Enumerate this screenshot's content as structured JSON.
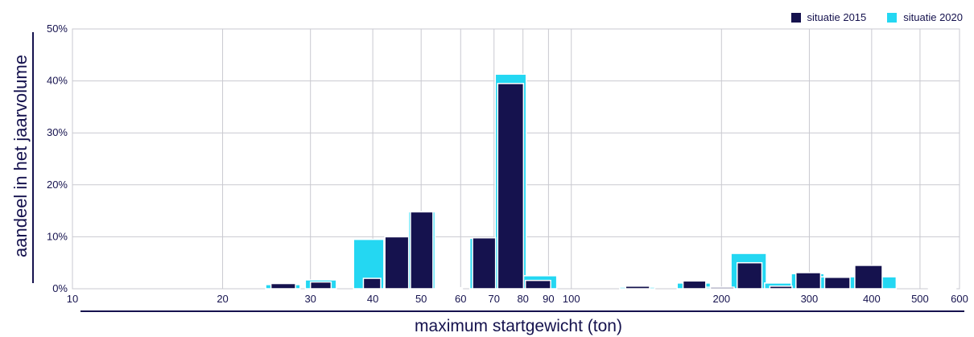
{
  "chart_data": {
    "type": "bar",
    "title": "",
    "xlabel": "maximum startgewicht (ton)",
    "ylabel": "aandeel in het jaarvolume",
    "x_scale": "log",
    "xlim": [
      10,
      600
    ],
    "ylim": [
      0,
      50
    ],
    "grid": true,
    "legend_position": "top-right",
    "x_ticks": [
      10,
      20,
      30,
      40,
      50,
      60,
      70,
      80,
      90,
      100,
      200,
      300,
      400,
      500,
      600
    ],
    "x_tick_labels": [
      "10",
      "20",
      "30",
      "40",
      "50",
      "60",
      "70",
      "80",
      "90",
      "100",
      "200",
      "300",
      "400",
      "500",
      "600"
    ],
    "y_ticks": [
      0,
      10,
      20,
      30,
      40,
      50
    ],
    "y_tick_labels": [
      "0%",
      "10%",
      "20%",
      "30%",
      "40%",
      "50%"
    ],
    "series": [
      {
        "name": "situatie 2015",
        "color": "#15124e",
        "bars": [
          {
            "from": 25,
            "to": 28,
            "value": 1.0
          },
          {
            "from": 30,
            "to": 33,
            "value": 1.3
          },
          {
            "from": 38.3,
            "to": 41.5,
            "value": 2.0
          },
          {
            "from": 42.3,
            "to": 47.2,
            "value": 10.0
          },
          {
            "from": 47.6,
            "to": 52.8,
            "value": 14.8
          },
          {
            "from": 54,
            "to": 60,
            "value": 0.2
          },
          {
            "from": 63.4,
            "to": 70.5,
            "value": 9.8
          },
          {
            "from": 71.2,
            "to": 80.2,
            "value": 39.5
          },
          {
            "from": 80.9,
            "to": 90.9,
            "value": 1.6
          },
          {
            "from": 128.5,
            "to": 143.5,
            "value": 0.5
          },
          {
            "from": 167.5,
            "to": 186,
            "value": 1.5
          },
          {
            "from": 190,
            "to": 212,
            "value": 0.3
          },
          {
            "from": 215,
            "to": 241,
            "value": 5.0
          },
          {
            "from": 250,
            "to": 277,
            "value": 0.5
          },
          {
            "from": 282,
            "to": 316,
            "value": 3.1
          },
          {
            "from": 322,
            "to": 362,
            "value": 2.2
          },
          {
            "from": 370,
            "to": 420,
            "value": 4.5
          }
        ]
      },
      {
        "name": "situatie 2020",
        "color": "#24d7f2",
        "bars": [
          {
            "from": 24.4,
            "to": 28.6,
            "value": 0.8
          },
          {
            "from": 29.3,
            "to": 33.8,
            "value": 1.7
          },
          {
            "from": 36.6,
            "to": 42.1,
            "value": 9.5
          },
          {
            "from": 42.1,
            "to": 48,
            "value": 0.7
          },
          {
            "from": 47.2,
            "to": 53.3,
            "value": 14.8
          },
          {
            "from": 53.5,
            "to": 60.5,
            "value": 0.2
          },
          {
            "from": 62.6,
            "to": 71.4,
            "value": 9.7
          },
          {
            "from": 70.4,
            "to": 81.2,
            "value": 41.3
          },
          {
            "from": 80.2,
            "to": 93.5,
            "value": 2.5
          },
          {
            "from": 125,
            "to": 147,
            "value": 0.3
          },
          {
            "from": 163,
            "to": 190,
            "value": 1.1
          },
          {
            "from": 186,
            "to": 215,
            "value": 0.3
          },
          {
            "from": 209,
            "to": 246,
            "value": 6.8
          },
          {
            "from": 244,
            "to": 287,
            "value": 1.1
          },
          {
            "from": 276,
            "to": 321,
            "value": 2.9
          },
          {
            "from": 314,
            "to": 368,
            "value": 2.3
          },
          {
            "from": 359,
            "to": 425,
            "value": 2.3
          },
          {
            "from": 418,
            "to": 448,
            "value": 2.3
          },
          {
            "from": 520,
            "to": 590,
            "value": 0.2
          }
        ]
      }
    ]
  }
}
